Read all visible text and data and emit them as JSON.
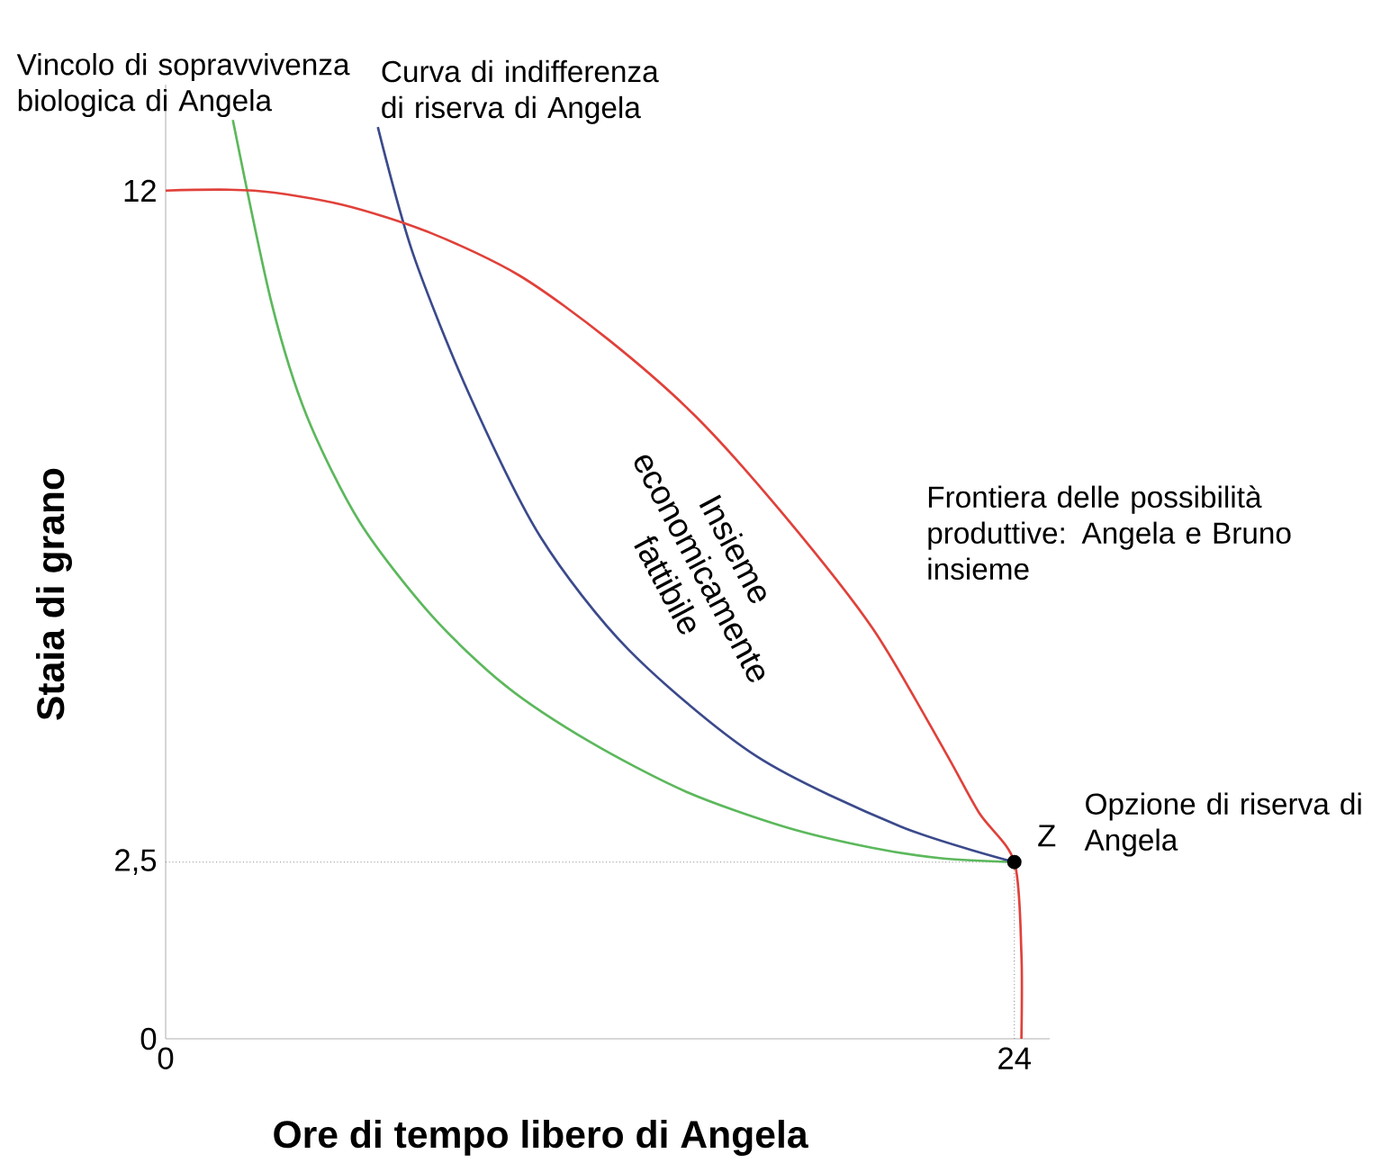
{
  "chart_data": {
    "type": "line",
    "xlabel": "Ore di tempo libero di Angela",
    "ylabel": "Staia di grano",
    "xlim": [
      0,
      25
    ],
    "ylim": [
      0,
      13.5
    ],
    "xticks": [
      0,
      24
    ],
    "yticks": [
      0,
      {
        "value": 2.5,
        "label": "2,5"
      },
      12
    ],
    "grid": false,
    "series": [
      {
        "name": "Vincolo di sopravvivenza biologica di Angela",
        "color": "#5cb85c",
        "x": [
          1.9,
          3,
          4,
          5.5,
          7.5,
          9.6,
          12,
          14.7,
          17.5,
          20,
          22,
          24
        ],
        "values": [
          13,
          10.4,
          8.8,
          7.3,
          6.0,
          5.0,
          4.2,
          3.5,
          3.0,
          2.7,
          2.55,
          2.5
        ]
      },
      {
        "name": "Curva di indifferenza di riserva di Angela",
        "color": "#3b4a8c",
        "x": [
          6.0,
          7.0,
          8.6,
          10.6,
          13.1,
          16.7,
          20.8,
          24
        ],
        "values": [
          12.9,
          11.1,
          9.1,
          7.1,
          5.5,
          4.0,
          3.0,
          2.5
        ]
      },
      {
        "name": "Frontiera delle possibilità produttive: Angela e Bruno insieme",
        "color": "#e0413a",
        "x": [
          0,
          2.5,
          5,
          7.5,
          10,
          12.5,
          15,
          17.5,
          20,
          22,
          23,
          24,
          24.2,
          24.2
        ],
        "values": [
          12,
          12,
          11.8,
          11.4,
          10.8,
          9.9,
          8.8,
          7.4,
          5.8,
          4.1,
          3.2,
          2.5,
          1.2,
          0
        ]
      },
      {
        "type": "scatter",
        "color": "#000000",
        "x": [
          24
        ],
        "values": [
          2.5
        ]
      }
    ],
    "ref_lines": [
      {
        "axis": "y",
        "value": 2.5,
        "color": "#888888",
        "line_style": "dotted"
      },
      {
        "axis": "x",
        "value": 24,
        "color": "#888888",
        "line_style": "dotted"
      }
    ],
    "annotations": [
      "Insieme economicamente fattibile",
      {
        "text": "Z",
        "x": 24,
        "y": 2.5
      },
      "Opzione di riserva di Angela"
    ]
  }
}
